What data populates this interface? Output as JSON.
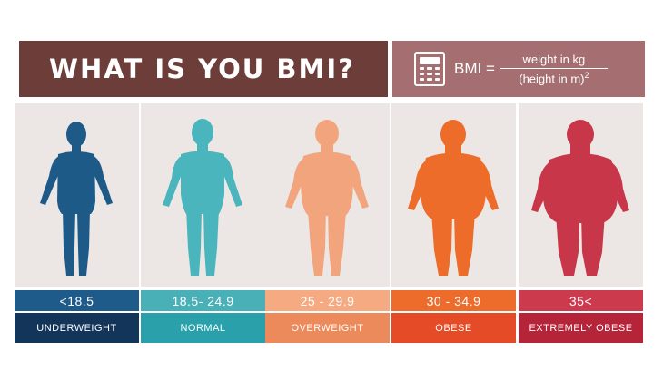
{
  "header": {
    "title": "WHAT IS YOU BMI?",
    "formula_lhs": "BMI =",
    "formula_numerator": "weight in kg",
    "formula_denominator": "(height in m)",
    "formula_exponent": "2",
    "icon": "calculator-icon"
  },
  "categories": [
    {
      "range": "<18.5",
      "label": "UNDERWEIGHT",
      "figure_color": "#1d5a88",
      "range_color": "#1e5a8a",
      "label_color": "#14355a",
      "icon": "thin-body-icon"
    },
    {
      "range": "18.5- 24.9",
      "label": "NORMAL",
      "figure_color": "#4ab5bd",
      "range_color": "#4ab0b8",
      "label_color": "#2aa0ab",
      "icon": "normal-body-icon"
    },
    {
      "range": "25 - 29.9",
      "label": "OVERWEIGHT",
      "figure_color": "#f2a57d",
      "range_color": "#f5aa82",
      "label_color": "#ec8a5b",
      "icon": "overweight-body-icon"
    },
    {
      "range": "30 - 34.9",
      "label": "OBESE",
      "figure_color": "#ed6c2a",
      "range_color": "#ee6c2b",
      "label_color": "#e54b26",
      "icon": "obese-body-icon"
    },
    {
      "range": "35<",
      "label": "EXTREMELY OBESE",
      "figure_color": "#c8364a",
      "range_color": "#cc3a4d",
      "label_color": "#b52438",
      "icon": "extremely-obese-body-icon"
    }
  ]
}
